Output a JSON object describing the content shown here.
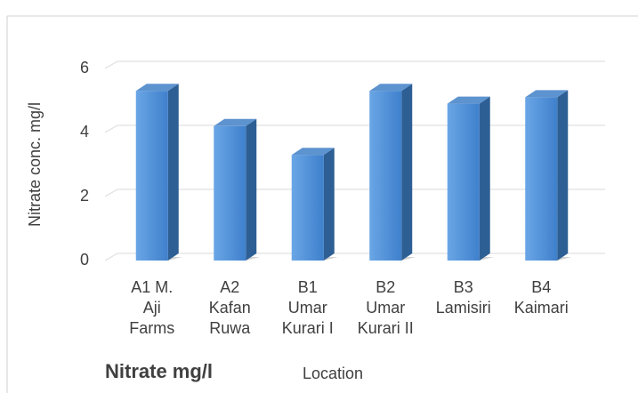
{
  "chart_data": {
    "type": "bar3d",
    "title": "Nitrate mg/l",
    "x_label": "Location",
    "y_label": "Nitrate conc. mg/l",
    "categories": [
      "A1 M.\nAji\nFarms",
      "A2\nKafan\nRuwa",
      "B1\nUmar\nKurari I",
      "B2\nUmar\nKurari II",
      "B3\nLamisiri",
      "B4\nKaimari"
    ],
    "values": [
      5.3,
      4.2,
      3.3,
      5.3,
      4.9,
      5.1
    ],
    "color": "#4a8ad4",
    "ylim": [
      0,
      6
    ],
    "yticks": [
      0,
      2,
      4,
      6
    ],
    "grid": true
  }
}
